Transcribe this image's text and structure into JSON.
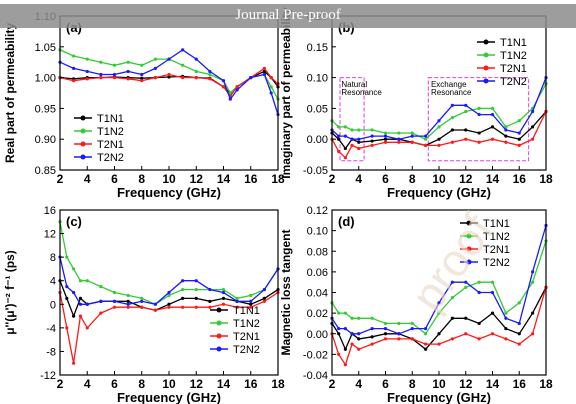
{
  "banner": {
    "text": "Journal Pre-proof"
  },
  "watermark": {
    "text": "proof"
  },
  "colors": {
    "T1N1": "#000000",
    "T1N2": "#33cc33",
    "T2N1": "#ff1a1a",
    "T2N2": "#1a1aff",
    "box": "#e040e0"
  },
  "chart_data": [
    {
      "type": "line",
      "panel": "(a)",
      "ylabel": "Real part of permeability",
      "xlabel": "Frequency (GHz)",
      "xlim": [
        2,
        18
      ],
      "ylim": [
        0.85,
        1.1
      ],
      "xticks": [
        "2",
        "4",
        "6",
        "8",
        "10",
        "12",
        "14",
        "16",
        "18"
      ],
      "yticks": [
        "0.85",
        "0.90",
        "0.95",
        "1.00",
        "1.05",
        "1.10"
      ],
      "legend": "lower-left",
      "x": [
        2,
        3,
        4,
        5,
        6,
        7,
        8,
        9,
        10,
        11,
        12,
        13,
        14,
        14.5,
        15,
        16,
        17,
        17.5,
        18
      ],
      "series": [
        {
          "name": "T1N1",
          "values": [
            1.0,
            0.998,
            1.0,
            1.0,
            1.001,
            1.0,
            0.999,
            1.0,
            1.001,
            1.002,
            1.0,
            0.999,
            0.985,
            0.975,
            0.985,
            1.0,
            1.01,
            1.0,
            0.985
          ]
        },
        {
          "name": "T1N2",
          "values": [
            1.045,
            1.035,
            1.03,
            1.025,
            1.02,
            1.025,
            1.02,
            1.03,
            1.03,
            1.02,
            1.01,
            1.005,
            0.995,
            0.975,
            0.985,
            1.0,
            1.005,
            0.985,
            0.965
          ]
        },
        {
          "name": "T2N1",
          "values": [
            1.0,
            0.995,
            0.998,
            1.0,
            1.0,
            0.998,
            0.995,
            1.0,
            1.005,
            1.0,
            1.0,
            0.998,
            0.985,
            0.97,
            0.985,
            1.0,
            1.015,
            1.0,
            0.99
          ]
        },
        {
          "name": "T2N2",
          "values": [
            1.025,
            1.015,
            1.01,
            1.005,
            1.005,
            1.01,
            1.005,
            1.015,
            1.03,
            1.045,
            1.03,
            1.01,
            0.995,
            0.965,
            0.98,
            1.0,
            1.005,
            0.975,
            0.94
          ]
        }
      ]
    },
    {
      "type": "line",
      "panel": "(b)",
      "ylabel": "Imaginary part of permeability",
      "xlabel": "Frequency (GHz)",
      "xlim": [
        2,
        18
      ],
      "ylim": [
        -0.05,
        0.2
      ],
      "xticks": [
        "2",
        "4",
        "6",
        "8",
        "10",
        "12",
        "14",
        "16",
        "18"
      ],
      "yticks": [
        "-0.05",
        "0.00",
        "0.05",
        "0.10",
        "0.15",
        "0.20"
      ],
      "legend": "top-right",
      "annotations": [
        "Natural Resonance",
        "Exchange Resonance"
      ],
      "x": [
        2,
        2.5,
        3,
        3.5,
        4,
        5,
        6,
        7,
        8,
        9,
        10,
        11,
        12,
        13,
        14,
        15,
        16,
        17,
        18
      ],
      "series": [
        {
          "name": "T1N1",
          "values": [
            0.01,
            0.0,
            -0.015,
            0.0,
            -0.005,
            -0.003,
            0.0,
            0.0,
            -0.005,
            -0.01,
            0.0,
            0.015,
            0.015,
            0.01,
            0.02,
            0.005,
            0.0,
            0.02,
            0.045
          ]
        },
        {
          "name": "T1N2",
          "values": [
            0.03,
            0.02,
            0.02,
            0.015,
            0.015,
            0.015,
            0.01,
            0.01,
            0.01,
            0.0,
            0.02,
            0.035,
            0.045,
            0.05,
            0.05,
            0.02,
            0.03,
            0.05,
            0.09
          ]
        },
        {
          "name": "T2N1",
          "values": [
            0.0,
            -0.02,
            -0.03,
            -0.01,
            -0.015,
            -0.01,
            -0.005,
            -0.005,
            -0.005,
            -0.01,
            -0.01,
            -0.005,
            0.0,
            -0.005,
            0.0,
            -0.005,
            -0.01,
            0.0,
            0.045
          ]
        },
        {
          "name": "T2N2",
          "values": [
            0.015,
            0.005,
            0.005,
            0.0,
            0.0,
            0.005,
            0.005,
            0.0,
            0.005,
            0.005,
            0.03,
            0.055,
            0.055,
            0.04,
            0.04,
            0.015,
            0.01,
            0.045,
            0.1
          ]
        }
      ]
    },
    {
      "type": "line",
      "panel": "(c)",
      "ylabel": "μ''(μ')⁻² f⁻¹ (ps)",
      "xlabel": "Frequency (GHz)",
      "xlim": [
        2,
        18
      ],
      "ylim": [
        -12,
        16
      ],
      "xticks": [
        "2",
        "4",
        "6",
        "8",
        "10",
        "12",
        "14",
        "16",
        "18"
      ],
      "yticks": [
        "-12",
        "-8",
        "-4",
        "0",
        "4",
        "8",
        "12",
        "16"
      ],
      "legend": "lower-right",
      "x": [
        2,
        2.5,
        3,
        3.5,
        4,
        5,
        6,
        7,
        8,
        9,
        10,
        11,
        12,
        13,
        14,
        15,
        16,
        17,
        18
      ],
      "series": [
        {
          "name": "T1N1",
          "values": [
            4,
            1,
            -2,
            1,
            0,
            0.5,
            0.5,
            0.5,
            -0.5,
            -1,
            0,
            1,
            1,
            0.5,
            1,
            0.5,
            0,
            1,
            2.5
          ]
        },
        {
          "name": "T1N2",
          "values": [
            14,
            8,
            6,
            4,
            4,
            3,
            2,
            1.5,
            1,
            0,
            1.5,
            2.5,
            2.5,
            2.5,
            2.5,
            1,
            1.5,
            2.5,
            6
          ]
        },
        {
          "name": "T2N1",
          "values": [
            2,
            -4,
            -10,
            -2,
            -4,
            -1.5,
            -0.5,
            -0.5,
            -0.5,
            -1,
            -0.5,
            -0.5,
            -0.5,
            -0.5,
            0,
            -0.5,
            -0.5,
            0.5,
            2
          ]
        },
        {
          "name": "T2N2",
          "values": [
            8,
            3,
            2,
            0,
            0,
            0.5,
            0.5,
            0,
            0.5,
            0,
            2,
            4,
            4,
            2.5,
            2,
            0.5,
            0.5,
            2.5,
            6
          ]
        }
      ]
    },
    {
      "type": "line",
      "panel": "(d)",
      "ylabel": "Magnetic loss tangent",
      "xlabel": "Frequency (GHz)",
      "xlim": [
        2,
        18
      ],
      "ylim": [
        -0.04,
        0.12
      ],
      "xticks": [
        "2",
        "4",
        "6",
        "8",
        "10",
        "12",
        "14",
        "16",
        "18"
      ],
      "yticks": [
        "-0.04",
        "-0.02",
        "0.00",
        "0.02",
        "0.04",
        "0.06",
        "0.08",
        "0.10",
        "0.12"
      ],
      "legend": "top-right",
      "x": [
        2,
        2.5,
        3,
        3.5,
        4,
        5,
        6,
        7,
        8,
        9,
        10,
        11,
        12,
        13,
        14,
        15,
        16,
        17,
        18
      ],
      "series": [
        {
          "name": "T1N1",
          "values": [
            0.01,
            0.0,
            -0.015,
            0.0,
            -0.005,
            -0.003,
            0.0,
            0.0,
            -0.005,
            -0.015,
            0.0,
            0.015,
            0.015,
            0.01,
            0.02,
            0.005,
            0.0,
            0.02,
            0.045
          ]
        },
        {
          "name": "T1N2",
          "values": [
            0.03,
            0.02,
            0.02,
            0.015,
            0.015,
            0.015,
            0.01,
            0.01,
            0.01,
            0.0,
            0.02,
            0.035,
            0.045,
            0.05,
            0.05,
            0.02,
            0.03,
            0.05,
            0.09
          ]
        },
        {
          "name": "T2N1",
          "values": [
            0.0,
            -0.02,
            -0.03,
            -0.01,
            -0.015,
            -0.01,
            -0.005,
            -0.005,
            -0.005,
            -0.01,
            -0.01,
            -0.005,
            0.0,
            -0.005,
            0.0,
            -0.005,
            -0.01,
            0.0,
            0.045
          ]
        },
        {
          "name": "T2N2",
          "values": [
            0.015,
            0.005,
            0.005,
            0.0,
            0.0,
            0.005,
            0.005,
            0.0,
            0.005,
            0.005,
            0.03,
            0.05,
            0.05,
            0.04,
            0.04,
            0.015,
            0.01,
            0.06,
            0.105
          ]
        }
      ]
    }
  ]
}
